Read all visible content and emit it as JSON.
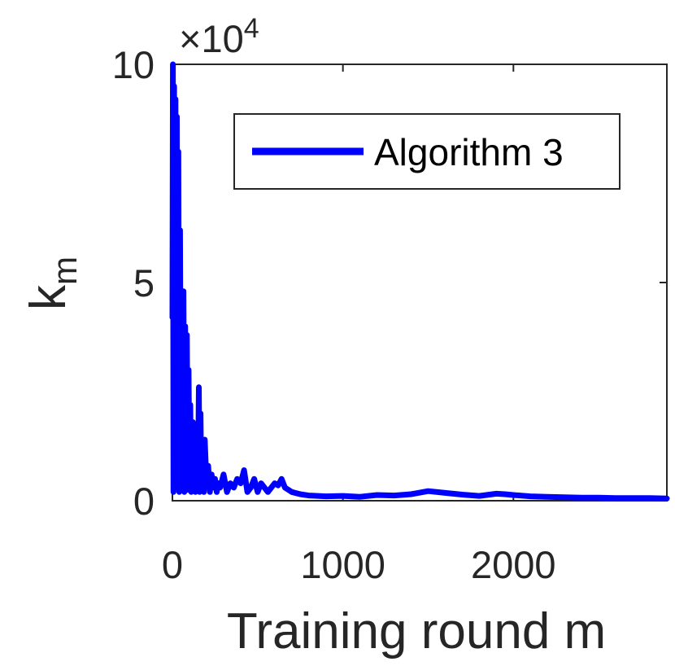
{
  "chart_data": {
    "type": "line",
    "xlabel": "Training round m",
    "ylabel_base": "k",
    "ylabel_sub": "m",
    "y_multiplier_prefix": "×10",
    "y_multiplier_exp": "4",
    "xlim": [
      0,
      2900
    ],
    "ylim": [
      0,
      100000
    ],
    "x_ticks": [
      0,
      1000,
      2000
    ],
    "x_tick_labels": [
      "0",
      "1000",
      "2000"
    ],
    "y_ticks": [
      0,
      50000,
      100000
    ],
    "y_tick_labels": [
      "0",
      "5",
      "10"
    ],
    "grid": false,
    "legend_position": "top-right",
    "series": [
      {
        "name": "Algorithm 3",
        "color": "#0000ff",
        "x": [
          0,
          3,
          6,
          10,
          14,
          18,
          22,
          26,
          30,
          35,
          40,
          45,
          50,
          55,
          60,
          65,
          70,
          75,
          80,
          85,
          90,
          95,
          100,
          105,
          110,
          120,
          125,
          130,
          135,
          140,
          150,
          155,
          160,
          165,
          170,
          180,
          185,
          190,
          200,
          210,
          220,
          230,
          240,
          250,
          260,
          270,
          280,
          300,
          320,
          340,
          360,
          380,
          400,
          420,
          440,
          460,
          480,
          500,
          520,
          540,
          560,
          580,
          600,
          620,
          640,
          660,
          680,
          700,
          750,
          800,
          900,
          1000,
          1100,
          1200,
          1300,
          1400,
          1500,
          1600,
          1700,
          1800,
          1900,
          1950,
          2000,
          2100,
          2200,
          2300,
          2400,
          2500,
          2600,
          2700,
          2800,
          2900
        ],
        "y": [
          42000,
          100000,
          2000,
          95000,
          5000,
          92000,
          3000,
          88000,
          6000,
          80000,
          2000,
          62000,
          4000,
          45000,
          3000,
          48000,
          2000,
          40000,
          3000,
          38000,
          2500,
          30000,
          4000,
          22000,
          2000,
          18000,
          3000,
          15000,
          2000,
          12000,
          3000,
          26000,
          2000,
          20000,
          3000,
          12000,
          2000,
          14000,
          4000,
          8000,
          2000,
          6000,
          3000,
          5000,
          2000,
          4000,
          3000,
          6000,
          2000,
          4000,
          3000,
          5000,
          4000,
          7000,
          2000,
          3000,
          5000,
          2000,
          4000,
          3000,
          2000,
          3000,
          4000,
          3500,
          5000,
          3000,
          2500,
          2000,
          1500,
          1200,
          1000,
          1100,
          900,
          1300,
          1200,
          1500,
          2200,
          1800,
          1400,
          1100,
          1600,
          1500,
          1300,
          1000,
          900,
          800,
          700,
          700,
          600,
          600,
          600,
          500
        ]
      }
    ]
  }
}
